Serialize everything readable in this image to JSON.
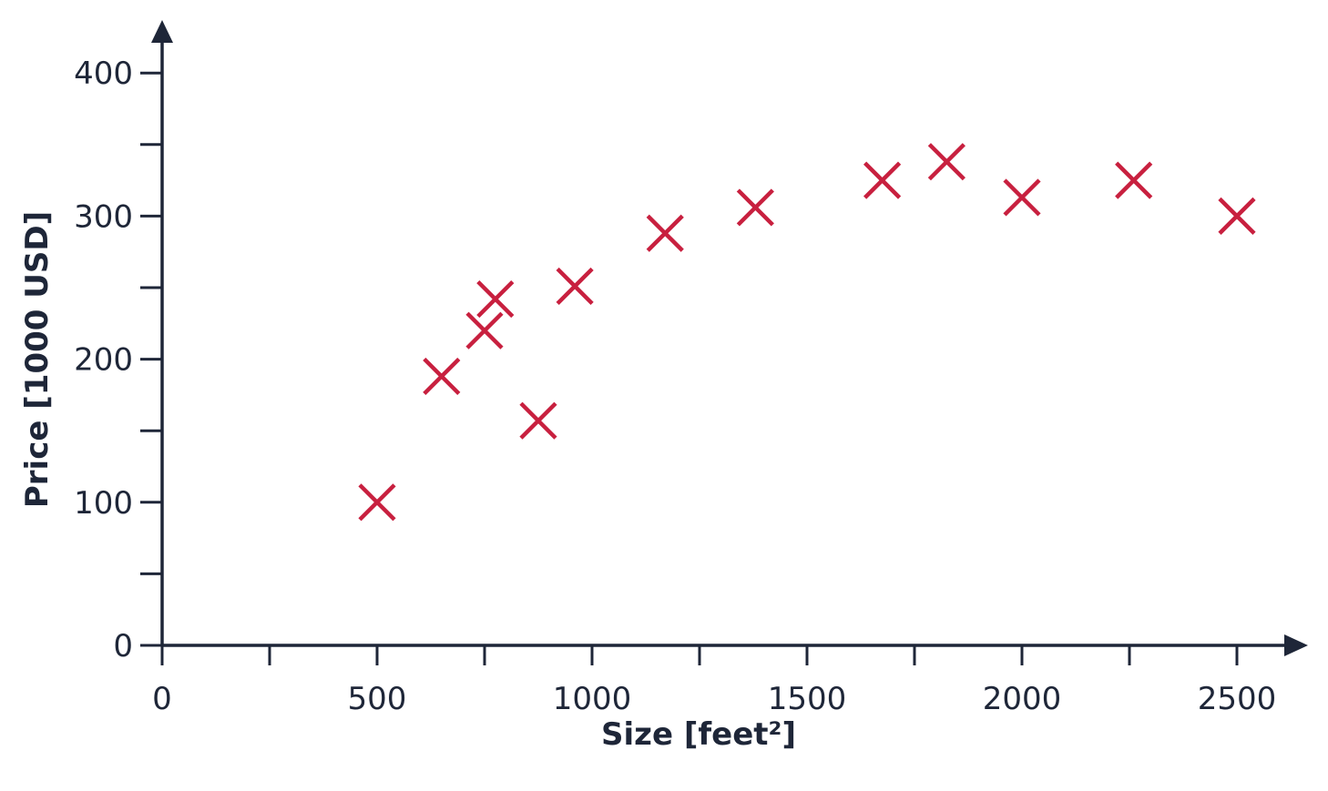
{
  "chart_data": {
    "type": "scatter",
    "title": "",
    "xlabel": "Size [feet²]",
    "ylabel": "Price [1000 USD]",
    "xlim": [
      0,
      2650
    ],
    "ylim": [
      0,
      430
    ],
    "x_ticks": [
      0,
      250,
      500,
      750,
      1000,
      1250,
      1500,
      1750,
      2000,
      2250,
      2500
    ],
    "x_tick_labels": [
      "0",
      "",
      "500",
      "",
      "1000",
      "",
      "1500",
      "",
      "2000",
      "",
      "2500"
    ],
    "y_ticks": [
      0,
      50,
      100,
      150,
      200,
      250,
      300,
      350,
      400
    ],
    "y_tick_labels": [
      "0",
      "",
      "100",
      "",
      "200",
      "",
      "300",
      "",
      "400"
    ],
    "grid": false,
    "marker": "x",
    "marker_color": "#c8203f",
    "axis_color": "#1e2638",
    "series": [
      {
        "x": [
          500,
          650,
          750,
          775,
          875,
          960,
          1170,
          1380,
          1675,
          1825,
          2000,
          2260,
          2500
        ],
        "y": [
          100,
          188,
          220,
          242,
          157,
          251,
          288,
          306,
          325,
          338,
          313,
          325,
          300
        ]
      }
    ]
  }
}
